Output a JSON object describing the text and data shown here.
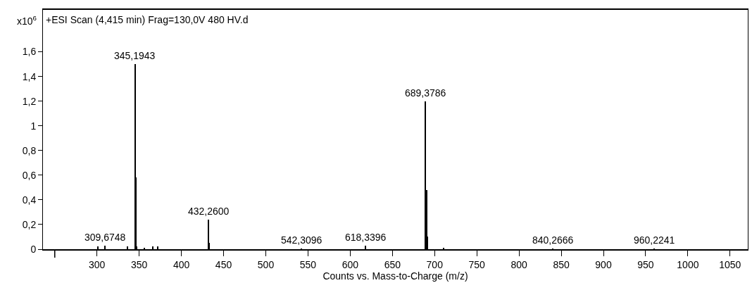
{
  "chart_data": {
    "type": "bar",
    "title": "+ESI Scan (4,415 min) Frag=130,0V 480 HV.d",
    "xlabel": "Counts vs. Mass-to-Charge (m/z)",
    "ylabel": "x10$^{6}$",
    "x": [
      301,
      309.6748,
      336,
      345.1943,
      346.2,
      347.2,
      356,
      366,
      372,
      432.26,
      433.3,
      542.3096,
      618.3396,
      689.3786,
      690.4,
      691.4,
      711,
      840.2666,
      960.2241
    ],
    "series": [
      {
        "color": "#000000",
        "values": [
          0.02,
          0.03,
          0.02,
          1.5,
          0.58,
          0.02,
          0.01,
          0.02,
          0.02,
          0.24,
          0.05,
          0.005,
          0.03,
          1.2,
          0.48,
          0.1,
          0.01,
          0.003,
          0.003
        ]
      }
    ],
    "annotations": [
      {
        "text": "309,6748",
        "x": 309.6748,
        "y": 0.03
      },
      {
        "text": "345,1943",
        "x": 345.1943,
        "y": 1.5
      },
      {
        "text": "432,2600",
        "x": 432.26,
        "y": 0.24
      },
      {
        "text": "542,3096",
        "x": 542.3096,
        "y": 0.005
      },
      {
        "text": "618,3396",
        "x": 618.3396,
        "y": 0.03
      },
      {
        "text": "689,3786",
        "x": 689.3786,
        "y": 1.2
      },
      {
        "text": "840,2666",
        "x": 840.2666,
        "y": 0.003
      },
      {
        "text": "960,2241",
        "x": 960.2241,
        "y": 0.003
      }
    ],
    "xlim": [
      236,
      1071
    ],
    "ylim": [
      0,
      1.94
    ],
    "xticks": [
      {
        "value": 250,
        "label": null
      },
      300,
      350,
      400,
      450,
      500,
      550,
      600,
      650,
      700,
      750,
      800,
      850,
      900,
      950,
      1000,
      1050
    ],
    "yticks": [
      0,
      {
        "value": 0.2,
        "label": "0,2"
      },
      {
        "value": 0.4,
        "label": "0,4"
      },
      {
        "value": 0.6,
        "label": "0,6"
      },
      {
        "value": 0.8,
        "label": "0,8"
      },
      1,
      {
        "value": 1.2,
        "label": "1,2"
      },
      {
        "value": 1.4,
        "label": "1,4"
      },
      {
        "value": 1.6,
        "label": "1,6"
      }
    ],
    "grid": false
  }
}
